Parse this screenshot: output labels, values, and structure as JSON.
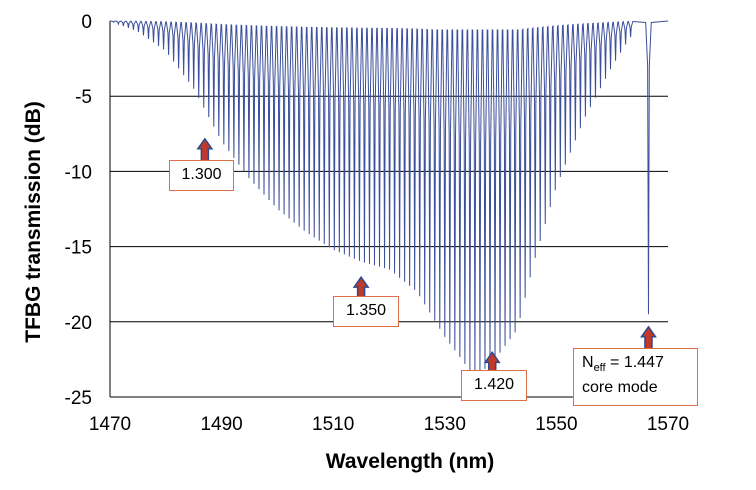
{
  "chart_data": {
    "type": "line",
    "title": "",
    "xlabel": "Wavelength (nm)",
    "ylabel": "TFBG  transmission (dB)",
    "xlim": [
      1470,
      1570
    ],
    "ylim": [
      -25,
      0
    ],
    "xticks": [
      1470,
      1490,
      1510,
      1530,
      1550,
      1570
    ],
    "yticks": [
      0,
      -5,
      -10,
      -15,
      -20,
      -25
    ],
    "grid": "horizontal",
    "series_color": "#3b4f9a",
    "envelope_depth_points": {
      "x": [
        1470,
        1475,
        1480,
        1485,
        1490,
        1495,
        1500,
        1505,
        1510,
        1515,
        1520,
        1525,
        1530,
        1535,
        1538,
        1540,
        1543,
        1546,
        1550,
        1555,
        1560,
        1563,
        1565,
        1567,
        1570
      ],
      "y": [
        0,
        -0.7,
        -2.0,
        -4.5,
        -8.0,
        -10.5,
        -12.5,
        -14.0,
        -15.2,
        -16.0,
        -16.5,
        -18.0,
        -21.0,
        -23.5,
        -23.0,
        -22.0,
        -20.5,
        -16.0,
        -11.0,
        -6.5,
        -3.0,
        -1.2,
        -0.4,
        0,
        0
      ]
    },
    "core_mode_dip": {
      "x": 1566.5,
      "y": -19.5
    },
    "resonance_spacing_nm": 0.9,
    "annotations": [
      {
        "label": "1.300",
        "x": 1487,
        "y": -7.3
      },
      {
        "label": "1.350",
        "x": 1515,
        "y": -16.5
      },
      {
        "label": "1.420",
        "x": 1538.5,
        "y": -21.5
      },
      {
        "label_main": "N",
        "label_sub": "eff",
        "label_rest": " = 1.447",
        "label_line2": "core mode",
        "x": 1566.5,
        "y": -19.8
      }
    ],
    "colors": {
      "arrow_fill": "#c0392b",
      "arrow_stroke": "#2f4a8a",
      "annotation_border": "#d9704a",
      "grid": "#000000"
    }
  }
}
